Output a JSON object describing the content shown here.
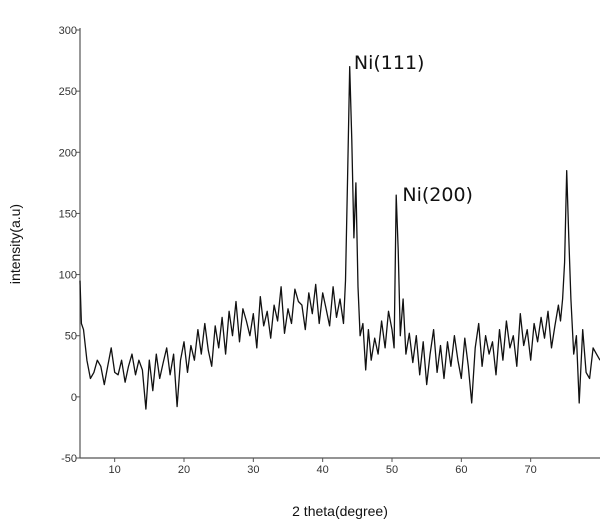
{
  "chart_data": {
    "type": "line",
    "title": "",
    "xlabel": "2 theta(degree)",
    "ylabel": "intensity(a.u)",
    "xlim": [
      5,
      80
    ],
    "ylim": [
      -50,
      300
    ],
    "xticks": [
      10,
      20,
      30,
      40,
      50,
      60,
      70
    ],
    "yticks": [
      -50,
      0,
      50,
      100,
      150,
      200,
      250,
      300
    ],
    "grid": false,
    "legend": "none",
    "colors": {
      "line": "#111111",
      "axis": "#555555",
      "background": "#ffffff"
    },
    "annotations": [
      {
        "text": "Ni(111)",
        "x": 44.5,
        "y": 268
      },
      {
        "text": "Ni(200)",
        "x": 51.5,
        "y": 160
      }
    ],
    "series": [
      {
        "x": [
          5,
          5.2,
          5.5,
          6,
          6.5,
          7,
          7.5,
          8,
          8.5,
          9,
          9.5,
          10,
          10.5,
          11,
          11.5,
          12,
          12.5,
          13,
          13.5,
          14,
          14.5,
          15,
          15.5,
          16,
          16.5,
          17,
          17.5,
          18,
          18.5,
          19,
          19.5,
          20,
          20.5,
          21,
          21.5,
          22,
          22.5,
          23,
          23.5,
          24,
          24.5,
          25,
          25.5,
          26,
          26.5,
          27,
          27.5,
          28,
          28.5,
          29,
          29.5,
          30,
          30.5,
          31,
          31.5,
          32,
          32.5,
          33,
          33.5,
          34,
          34.5,
          35,
          35.5,
          36,
          36.5,
          37,
          37.5,
          38,
          38.5,
          39,
          39.5,
          40,
          40.5,
          41,
          41.5,
          42,
          42.5,
          43,
          43.3,
          43.6,
          43.9,
          44.2,
          44.5,
          44.8,
          45.1,
          45.4,
          45.8,
          46.2,
          46.6,
          47,
          47.5,
          48,
          48.5,
          49,
          49.5,
          50,
          50.3,
          50.6,
          50.9,
          51.2,
          51.6,
          52,
          52.5,
          53,
          53.5,
          54,
          54.5,
          55,
          55.5,
          56,
          56.5,
          57,
          57.5,
          58,
          58.5,
          59,
          59.5,
          60,
          60.5,
          61,
          61.5,
          62,
          62.5,
          63,
          63.5,
          64,
          64.5,
          65,
          65.5,
          66,
          66.5,
          67,
          67.5,
          68,
          68.5,
          69,
          69.5,
          70,
          70.5,
          71,
          71.5,
          72,
          72.5,
          73,
          73.5,
          74,
          74.3,
          74.6,
          74.9,
          75.2,
          75.5,
          75.8,
          76.2,
          76.6,
          77,
          77.5,
          78,
          78.5,
          79,
          79.5,
          80
        ],
        "y": [
          95,
          60,
          55,
          30,
          15,
          20,
          30,
          25,
          10,
          25,
          40,
          20,
          18,
          30,
          12,
          25,
          35,
          18,
          30,
          22,
          -10,
          30,
          5,
          35,
          15,
          28,
          40,
          18,
          35,
          -8,
          30,
          45,
          20,
          42,
          30,
          55,
          35,
          60,
          38,
          25,
          58,
          40,
          65,
          35,
          70,
          50,
          78,
          45,
          72,
          62,
          50,
          68,
          40,
          82,
          58,
          70,
          48,
          75,
          62,
          90,
          52,
          72,
          60,
          88,
          78,
          75,
          55,
          85,
          68,
          92,
          60,
          85,
          72,
          58,
          90,
          65,
          80,
          60,
          95,
          180,
          270,
          210,
          130,
          175,
          90,
          50,
          60,
          22,
          55,
          30,
          48,
          35,
          62,
          40,
          70,
          55,
          40,
          165,
          120,
          50,
          80,
          35,
          52,
          28,
          50,
          18,
          45,
          10,
          35,
          55,
          20,
          42,
          15,
          45,
          25,
          50,
          30,
          15,
          48,
          25,
          -5,
          40,
          60,
          25,
          50,
          35,
          45,
          18,
          55,
          30,
          62,
          40,
          50,
          25,
          68,
          42,
          55,
          30,
          60,
          45,
          65,
          48,
          70,
          40,
          58,
          75,
          62,
          80,
          110,
          185,
          130,
          80,
          35,
          50,
          -5,
          55,
          20,
          15,
          40,
          35,
          30
        ]
      }
    ]
  }
}
